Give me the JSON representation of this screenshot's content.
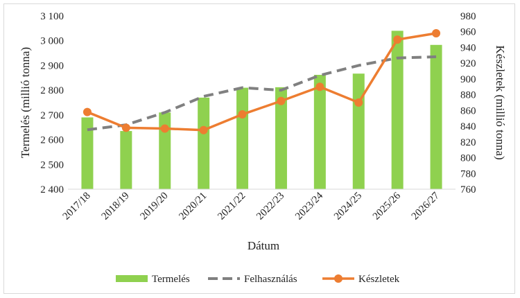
{
  "chart_data": {
    "type": "bar+line",
    "categories": [
      "2017/18",
      "2018/19",
      "2019/20",
      "2020/21",
      "2021/22",
      "2022/23",
      "2023/24",
      "2024/25",
      "2025/26",
      "2026/27"
    ],
    "xlabel": "Dátum",
    "ylabel_left": "Termelés (millió tonna)",
    "ylabel_right": "Készletek (millió tonna)",
    "ylim_left": [
      2400,
      3100
    ],
    "ylim_right": [
      760,
      980
    ],
    "yticks_left": [
      "2 400",
      "2 500",
      "2 600",
      "2 700",
      "2 800",
      "2 900",
      "3 000",
      "3 100"
    ],
    "yticks_right": [
      "760",
      "780",
      "800",
      "820",
      "840",
      "860",
      "880",
      "900",
      "920",
      "940",
      "960",
      "980"
    ],
    "series": [
      {
        "name": "Termelés",
        "kind": "bar",
        "axis": "left",
        "color": "#8fd14f",
        "values": [
          2690,
          2635,
          2710,
          2770,
          2810,
          2812,
          2862,
          2867,
          3040,
          2983
        ]
      },
      {
        "name": "Felhasználás",
        "kind": "dashed-line",
        "axis": "left",
        "color": "#808080",
        "values": [
          2640,
          2660,
          2710,
          2775,
          2810,
          2800,
          2860,
          2900,
          2930,
          2935
        ]
      },
      {
        "name": "Készletek",
        "kind": "line-marker",
        "axis": "right",
        "color": "#ed7d31",
        "values": [
          858,
          838,
          837,
          835,
          855,
          872,
          890,
          870,
          950,
          958
        ]
      }
    ],
    "legend_position": "bottom",
    "grid": false
  }
}
